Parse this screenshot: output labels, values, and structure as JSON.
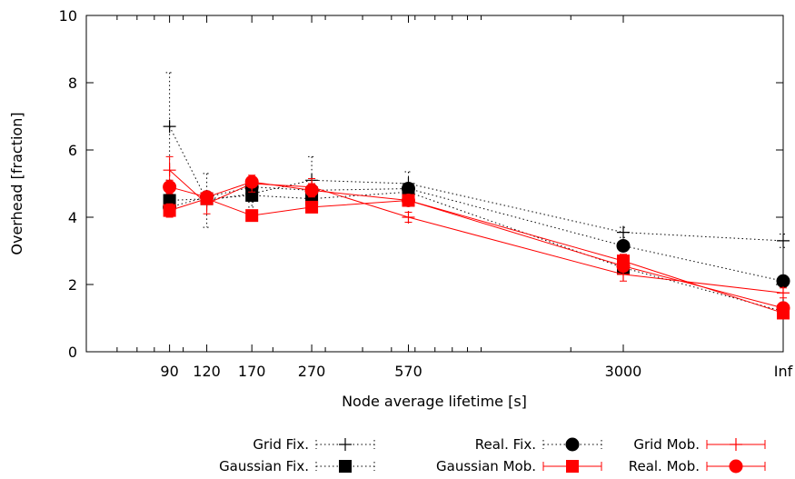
{
  "chart_data": {
    "type": "line",
    "xlabel": "Node average lifetime [s]",
    "ylabel": "Overhead [fraction]",
    "x_categories": [
      "90",
      "120",
      "170",
      "270",
      "570",
      "3000",
      "Inf"
    ],
    "x_scale": "log, with Inf placed at the right edge",
    "ylim": [
      0,
      10
    ],
    "yticks": [
      "0",
      "2",
      "4",
      "6",
      "8",
      "10"
    ],
    "grid": false,
    "legend_position": "bottom",
    "series": [
      {
        "name": "Grid Fix.",
        "color": "#000000",
        "line": "dotted",
        "marker": "plus",
        "values": [
          6.7,
          4.5,
          4.7,
          5.1,
          5.0,
          3.55,
          3.3
        ],
        "errors": [
          1.6,
          0.8,
          0.4,
          0.7,
          0.35,
          0.15,
          0.2
        ]
      },
      {
        "name": "Gaussian Fix.",
        "color": "#000000",
        "line": "dotted",
        "marker": "square",
        "values": [
          4.5,
          4.55,
          4.65,
          4.55,
          4.75,
          2.5,
          1.2
        ],
        "errors": [
          0.2,
          0.15,
          0.2,
          0.2,
          0.15,
          0.15,
          0.1
        ]
      },
      {
        "name": "Real. Fix.",
        "color": "#000000",
        "line": "dotted",
        "marker": "circle",
        "values": [
          4.3,
          4.6,
          4.9,
          4.8,
          4.85,
          3.15,
          2.1
        ],
        "errors": [
          0.2,
          0.15,
          0.15,
          0.2,
          0.15,
          0.15,
          0.1
        ]
      },
      {
        "name": "Gaussian Mob.",
        "color": "#ff0000",
        "line": "solid",
        "marker": "square",
        "values": [
          4.2,
          4.55,
          4.05,
          4.3,
          4.5,
          2.7,
          1.15
        ],
        "errors": [
          0.2,
          0.15,
          0.15,
          0.15,
          0.15,
          0.2,
          0.1
        ]
      },
      {
        "name": "Grid Mob.",
        "color": "#ff0000",
        "line": "solid",
        "marker": "plus",
        "values": [
          5.4,
          4.4,
          5.0,
          4.9,
          4.0,
          2.3,
          1.75
        ],
        "errors": [
          0.4,
          0.3,
          0.25,
          0.25,
          0.15,
          0.2,
          0.15
        ]
      },
      {
        "name": "Real. Mob.",
        "color": "#ff0000",
        "line": "solid",
        "marker": "circle",
        "values": [
          4.9,
          4.6,
          5.05,
          4.8,
          4.5,
          2.55,
          1.3
        ],
        "errors": [
          0.2,
          0.15,
          0.15,
          0.2,
          0.15,
          0.15,
          0.1
        ]
      }
    ]
  }
}
